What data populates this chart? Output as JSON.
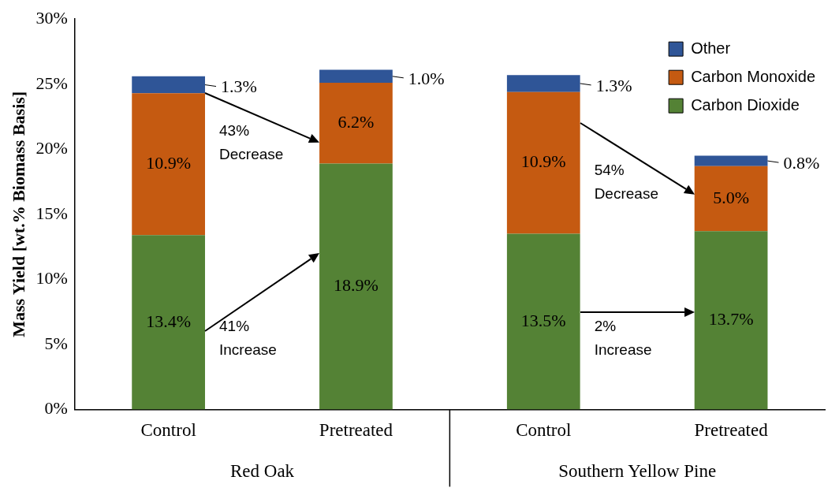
{
  "chart_data": {
    "type": "bar",
    "stacked": true,
    "ylabel": "Mass Yield [wt.% Biomass Basis]",
    "categories": [
      "Control",
      "Pretreated",
      "Control",
      "Pretreated"
    ],
    "ylim": [
      0,
      30
    ],
    "yticks": [
      {
        "value": 0,
        "label": "0%"
      },
      {
        "value": 5,
        "label": "5%"
      },
      {
        "value": 10,
        "label": "10%"
      },
      {
        "value": 15,
        "label": "15%"
      },
      {
        "value": 20,
        "label": "20%"
      },
      {
        "value": 25,
        "label": "25%"
      },
      {
        "value": 30,
        "label": "30%"
      }
    ],
    "grid": false,
    "legend": "top right",
    "series": [
      {
        "name": "Carbon Dioxide",
        "color": "#548235",
        "values": [
          13.4,
          18.9,
          13.5,
          13.7
        ],
        "value_labels": [
          "13.4%",
          "18.9%",
          "13.5%",
          "13.7%"
        ]
      },
      {
        "name": "Carbon Monoxide",
        "color": "#c55a11",
        "values": [
          10.9,
          6.2,
          10.9,
          5.0
        ],
        "value_labels": [
          "10.9%",
          "6.2%",
          "10.9%",
          "5.0%"
        ]
      },
      {
        "name": "Other",
        "color": "#2f5597",
        "values": [
          1.3,
          1.0,
          1.3,
          0.8
        ],
        "value_labels": [
          "1.3%",
          "1.0%",
          "1.3%",
          "0.8%"
        ]
      }
    ],
    "annotations": [
      "43% Decrease",
      "41% Increase",
      "54% Decrease",
      "2% Increase",
      "Red Oak",
      "Southern Yellow Pine"
    ]
  }
}
